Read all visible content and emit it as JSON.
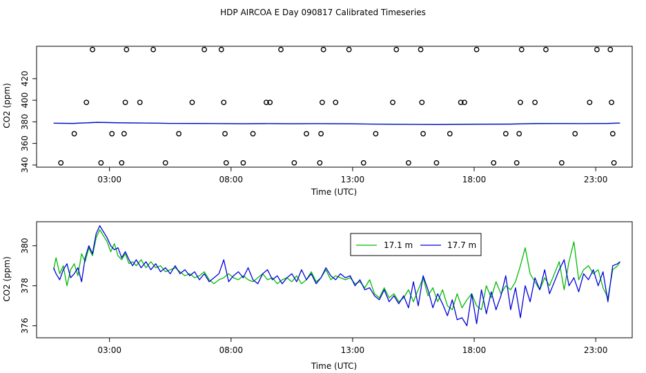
{
  "title": "HDP AIRCOA E  Day 090817  Calibrated Timeseries",
  "colors": {
    "series_171": "#00bb00",
    "series_177": "#0000dd",
    "axis": "#000000"
  },
  "chart_data": [
    {
      "type": "scatter+line",
      "title": "",
      "xlabel": "Time (UTC)",
      "ylabel": "CO2 (ppm)",
      "xlim": [
        0,
        24.5
      ],
      "ylim": [
        338,
        450
      ],
      "xticks": [
        3,
        8,
        13,
        18,
        23
      ],
      "xtick_labels": [
        "03:00",
        "08:00",
        "13:00",
        "18:00",
        "23:00"
      ],
      "yticks": [
        340,
        360,
        380,
        400,
        420
      ],
      "ytick_labels": [
        "340",
        "360",
        "380",
        "400",
        "420"
      ],
      "calibration_points": {
        "hours": [
          1.0,
          1.55,
          2.05,
          2.3,
          2.65,
          3.1,
          3.5,
          3.6,
          3.65,
          3.7,
          4.25,
          4.8,
          5.3,
          5.85,
          6.4,
          6.9,
          7.6,
          7.7,
          7.75,
          7.8,
          8.5,
          8.9,
          9.45,
          9.6,
          10.05,
          10.6,
          11.1,
          11.65,
          11.7,
          11.75,
          11.8,
          12.3,
          12.85,
          13.45,
          13.95,
          14.65,
          14.8,
          15.3,
          15.8,
          15.85,
          15.9,
          16.45,
          17.0,
          17.45,
          17.6,
          18.1,
          18.8,
          19.3,
          19.75,
          19.85,
          19.9,
          19.95,
          20.5,
          20.95,
          21.6,
          22.15,
          22.75,
          23.05,
          23.6,
          23.65,
          23.7,
          23.75
        ],
        "values": [
          342,
          369,
          398,
          447,
          342,
          369,
          342,
          369,
          398,
          447,
          398,
          447,
          342,
          369,
          398,
          447,
          447,
          398,
          369,
          342,
          342,
          369,
          398,
          398,
          447,
          342,
          369,
          342,
          369,
          398,
          447,
          398,
          447,
          342,
          369,
          398,
          447,
          342,
          447,
          398,
          369,
          342,
          369,
          398,
          398,
          447,
          342,
          369,
          342,
          369,
          398,
          447,
          398,
          447,
          342,
          369,
          398,
          447,
          447,
          398,
          369,
          342
        ]
      },
      "series": [
        {
          "name": "17.1 m",
          "hours": [
            0.7,
            1.5,
            2.5,
            3.5,
            4.5,
            5.5,
            6.5,
            7.5,
            8.5,
            9.5,
            10.5,
            11.5,
            12.5,
            13.5,
            14.5,
            15.5,
            16.5,
            17.5,
            18.5,
            19.5,
            20.5,
            21.5,
            22.5,
            23.5,
            24.0
          ],
          "values": [
            378.7,
            378.6,
            379.6,
            379.0,
            378.9,
            378.6,
            378.5,
            378.3,
            378.2,
            378.3,
            378.2,
            378.3,
            378.2,
            378.0,
            377.8,
            377.7,
            377.6,
            377.8,
            377.9,
            378.0,
            378.5,
            378.6,
            378.4,
            378.5,
            378.9
          ]
        },
        {
          "name": "17.7 m",
          "hours": [
            0.7,
            1.5,
            2.5,
            3.5,
            4.5,
            5.5,
            6.5,
            7.5,
            8.5,
            9.5,
            10.5,
            11.5,
            12.5,
            13.5,
            14.5,
            15.5,
            16.5,
            17.5,
            18.5,
            19.5,
            20.5,
            21.5,
            22.5,
            23.5,
            24.0
          ],
          "values": [
            378.7,
            378.5,
            379.5,
            379.1,
            378.9,
            378.6,
            378.5,
            378.4,
            378.2,
            378.4,
            378.2,
            378.3,
            378.2,
            378.0,
            377.7,
            377.6,
            377.5,
            377.6,
            377.8,
            377.9,
            378.3,
            378.4,
            378.3,
            378.5,
            378.9
          ]
        }
      ]
    },
    {
      "type": "line",
      "title": "",
      "xlabel": "Time (UTC)",
      "ylabel": "CO2 (ppm)",
      "xlim": [
        0,
        24.5
      ],
      "ylim": [
        375.4,
        381.2
      ],
      "xticks": [
        3,
        8,
        13,
        18,
        23
      ],
      "xtick_labels": [
        "03:00",
        "08:00",
        "13:00",
        "18:00",
        "23:00"
      ],
      "yticks": [
        376,
        378,
        380
      ],
      "ytick_labels": [
        "376",
        "378",
        "380"
      ],
      "legend": {
        "position": "top-center",
        "entries": [
          "17.1 m",
          "17.7 m"
        ]
      },
      "series": [
        {
          "name": "17.1 m",
          "hours": [
            0.7,
            0.8,
            0.95,
            1.1,
            1.25,
            1.4,
            1.55,
            1.7,
            1.85,
            2.0,
            2.15,
            2.3,
            2.45,
            2.6,
            2.75,
            2.9,
            3.05,
            3.2,
            3.35,
            3.5,
            3.65,
            3.8,
            3.95,
            4.1,
            4.3,
            4.5,
            4.7,
            4.9,
            5.1,
            5.3,
            5.5,
            5.7,
            5.9,
            6.1,
            6.3,
            6.5,
            6.7,
            6.9,
            7.1,
            7.3,
            7.5,
            7.7,
            7.9,
            8.1,
            8.3,
            8.5,
            8.7,
            8.9,
            9.1,
            9.3,
            9.5,
            9.7,
            9.9,
            10.1,
            10.3,
            10.5,
            10.7,
            10.9,
            11.1,
            11.3,
            11.5,
            11.7,
            11.9,
            12.1,
            12.3,
            12.5,
            12.7,
            12.9,
            13.1,
            13.3,
            13.5,
            13.7,
            13.9,
            14.1,
            14.3,
            14.5,
            14.7,
            14.9,
            15.1,
            15.3,
            15.5,
            15.7,
            15.9,
            16.1,
            16.3,
            16.5,
            16.7,
            16.9,
            17.1,
            17.3,
            17.5,
            17.7,
            17.9,
            18.1,
            18.3,
            18.5,
            18.7,
            18.9,
            19.1,
            19.3,
            19.5,
            19.7,
            19.9,
            20.1,
            20.3,
            20.5,
            20.7,
            20.9,
            21.1,
            21.3,
            21.5,
            21.7,
            21.9,
            22.1,
            22.3,
            22.5,
            22.7,
            22.9,
            23.1,
            23.3,
            23.5,
            23.7,
            23.9,
            24.0
          ],
          "values": [
            378.8,
            379.4,
            378.6,
            379.0,
            378.0,
            378.8,
            379.1,
            378.5,
            379.6,
            379.2,
            379.9,
            379.5,
            380.4,
            380.8,
            380.5,
            380.2,
            379.7,
            380.1,
            379.5,
            379.3,
            379.6,
            379.1,
            379.2,
            379.0,
            379.3,
            378.9,
            379.2,
            378.9,
            379.0,
            378.7,
            378.8,
            378.9,
            378.7,
            378.5,
            378.6,
            378.4,
            378.5,
            378.7,
            378.3,
            378.1,
            378.3,
            378.4,
            378.6,
            378.4,
            378.3,
            378.5,
            378.3,
            378.2,
            378.4,
            378.6,
            378.3,
            378.4,
            378.1,
            378.3,
            378.4,
            378.2,
            378.5,
            378.1,
            378.3,
            378.7,
            378.2,
            378.4,
            378.8,
            378.3,
            378.5,
            378.4,
            378.3,
            378.4,
            378.1,
            378.2,
            377.9,
            378.3,
            377.6,
            377.4,
            377.9,
            377.4,
            377.6,
            377.2,
            377.4,
            377.8,
            377.2,
            377.8,
            378.4,
            377.5,
            377.9,
            377.2,
            377.8,
            377.0,
            376.8,
            377.6,
            376.9,
            377.3,
            377.6,
            377.0,
            376.8,
            378.0,
            377.4,
            378.2,
            377.6,
            378.0,
            377.8,
            378.2,
            379.0,
            379.9,
            378.6,
            378.2,
            377.8,
            378.4,
            378.0,
            378.6,
            379.2,
            377.8,
            379.2,
            380.2,
            378.3,
            378.8,
            379.0,
            378.6,
            378.8,
            377.9,
            377.4,
            378.8,
            379.0,
            379.2
          ]
        },
        {
          "name": "17.7 m",
          "hours": [
            0.7,
            0.8,
            0.95,
            1.1,
            1.25,
            1.4,
            1.55,
            1.7,
            1.85,
            2.0,
            2.15,
            2.3,
            2.45,
            2.6,
            2.75,
            2.9,
            3.05,
            3.2,
            3.35,
            3.5,
            3.65,
            3.8,
            3.95,
            4.1,
            4.3,
            4.5,
            4.7,
            4.9,
            5.1,
            5.3,
            5.5,
            5.7,
            5.9,
            6.1,
            6.3,
            6.5,
            6.7,
            6.9,
            7.1,
            7.3,
            7.5,
            7.7,
            7.9,
            8.1,
            8.3,
            8.5,
            8.7,
            8.9,
            9.1,
            9.3,
            9.5,
            9.7,
            9.9,
            10.1,
            10.3,
            10.5,
            10.7,
            10.9,
            11.1,
            11.3,
            11.5,
            11.7,
            11.9,
            12.1,
            12.3,
            12.5,
            12.7,
            12.9,
            13.1,
            13.3,
            13.5,
            13.7,
            13.9,
            14.1,
            14.3,
            14.5,
            14.7,
            14.9,
            15.1,
            15.3,
            15.5,
            15.7,
            15.9,
            16.1,
            16.3,
            16.5,
            16.7,
            16.9,
            17.1,
            17.3,
            17.5,
            17.7,
            17.9,
            18.1,
            18.3,
            18.5,
            18.7,
            18.9,
            19.1,
            19.3,
            19.5,
            19.7,
            19.9,
            20.1,
            20.3,
            20.5,
            20.7,
            20.9,
            21.1,
            21.3,
            21.5,
            21.7,
            21.9,
            22.1,
            22.3,
            22.5,
            22.7,
            22.9,
            23.1,
            23.3,
            23.5,
            23.7,
            23.9,
            24.0
          ],
          "values": [
            378.9,
            378.6,
            378.3,
            378.8,
            379.1,
            378.4,
            378.6,
            378.9,
            378.2,
            379.4,
            380.0,
            379.6,
            380.6,
            381.0,
            380.7,
            380.4,
            380.0,
            379.8,
            379.9,
            379.4,
            379.7,
            379.3,
            379.0,
            379.3,
            378.9,
            379.2,
            378.8,
            379.1,
            378.7,
            378.9,
            378.6,
            379.0,
            378.6,
            378.8,
            378.5,
            378.7,
            378.3,
            378.6,
            378.2,
            378.4,
            378.6,
            379.3,
            378.2,
            378.5,
            378.7,
            378.4,
            378.9,
            378.3,
            378.1,
            378.6,
            378.8,
            378.3,
            378.5,
            378.1,
            378.4,
            378.6,
            378.2,
            378.8,
            378.3,
            378.6,
            378.1,
            378.4,
            378.9,
            378.5,
            378.3,
            378.6,
            378.4,
            378.5,
            378.0,
            378.3,
            377.8,
            377.9,
            377.5,
            377.3,
            377.8,
            377.2,
            377.5,
            377.1,
            377.5,
            376.9,
            378.2,
            377.0,
            378.5,
            377.8,
            376.9,
            377.6,
            377.1,
            376.5,
            377.3,
            376.3,
            376.4,
            376.0,
            377.6,
            376.1,
            377.8,
            376.6,
            377.7,
            376.8,
            377.5,
            378.5,
            376.8,
            377.9,
            376.4,
            378.0,
            377.2,
            378.4,
            377.8,
            378.8,
            377.6,
            378.2,
            378.8,
            379.3,
            378.0,
            378.4,
            377.7,
            378.6,
            378.3,
            378.8,
            378.0,
            378.7,
            377.2,
            379.0,
            379.1,
            379.2
          ]
        }
      ]
    }
  ]
}
